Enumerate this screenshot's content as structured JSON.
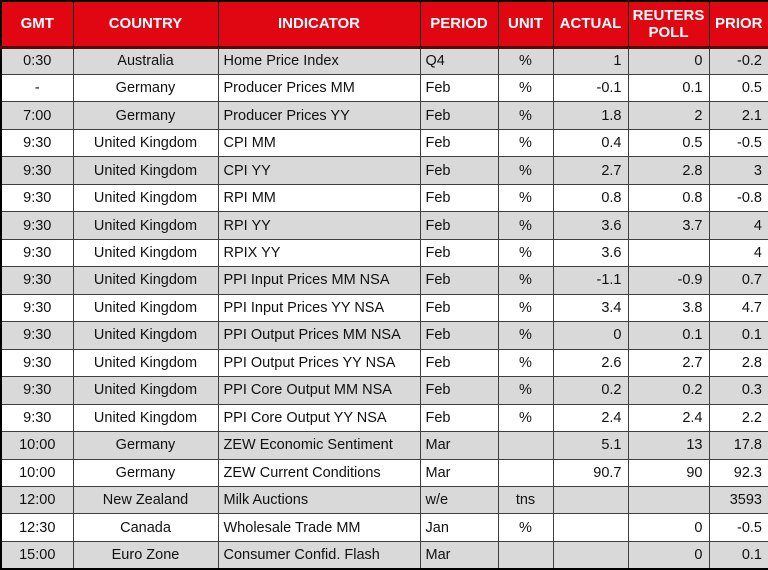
{
  "chart_data": {
    "type": "table",
    "columns": [
      "GMT",
      "COUNTRY",
      "INDICATOR",
      "PERIOD",
      "UNIT",
      "ACTUAL",
      "REUTERS POLL",
      "PRIOR"
    ],
    "rows": [
      [
        "0:30",
        "Australia",
        "Home Price Index",
        "Q4",
        "%",
        "1",
        "0",
        "-0.2"
      ],
      [
        "-",
        "Germany",
        "Producer Prices MM",
        "Feb",
        "%",
        "-0.1",
        "0.1",
        "0.5"
      ],
      [
        "7:00",
        "Germany",
        "Producer Prices YY",
        "Feb",
        "%",
        "1.8",
        "2",
        "2.1"
      ],
      [
        "9:30",
        "United Kingdom",
        "CPI MM",
        "Feb",
        "%",
        "0.4",
        "0.5",
        "-0.5"
      ],
      [
        "9:30",
        "United Kingdom",
        "CPI YY",
        "Feb",
        "%",
        "2.7",
        "2.8",
        "3"
      ],
      [
        "9:30",
        "United Kingdom",
        "RPI MM",
        "Feb",
        "%",
        "0.8",
        "0.8",
        "-0.8"
      ],
      [
        "9:30",
        "United Kingdom",
        "RPI YY",
        "Feb",
        "%",
        "3.6",
        "3.7",
        "4"
      ],
      [
        "9:30",
        "United Kingdom",
        "RPIX YY",
        "Feb",
        "%",
        "3.6",
        "",
        "4"
      ],
      [
        "9:30",
        "United Kingdom",
        "PPI Input Prices MM NSA",
        "Feb",
        "%",
        "-1.1",
        "-0.9",
        "0.7"
      ],
      [
        "9:30",
        "United Kingdom",
        "PPI Input Prices YY NSA",
        "Feb",
        "%",
        "3.4",
        "3.8",
        "4.7"
      ],
      [
        "9:30",
        "United Kingdom",
        "PPI Output Prices MM NSA",
        "Feb",
        "%",
        "0",
        "0.1",
        "0.1"
      ],
      [
        "9:30",
        "United Kingdom",
        "PPI Output Prices YY NSA",
        "Feb",
        "%",
        "2.6",
        "2.7",
        "2.8"
      ],
      [
        "9:30",
        "United Kingdom",
        "PPI Core Output MM NSA",
        "Feb",
        "%",
        "0.2",
        "0.2",
        "0.3"
      ],
      [
        "9:30",
        "United Kingdom",
        "PPI Core Output YY NSA",
        "Feb",
        "%",
        "2.4",
        "2.4",
        "2.2"
      ],
      [
        "10:00",
        "Germany",
        "ZEW Economic Sentiment",
        "Mar",
        "",
        "5.1",
        "13",
        "17.8"
      ],
      [
        "10:00",
        "Germany",
        "ZEW Current Conditions",
        "Mar",
        "",
        "90.7",
        "90",
        "92.3"
      ],
      [
        "12:00",
        "New Zealand",
        "Milk Auctions",
        "w/e",
        "tns",
        "",
        "",
        "3593"
      ],
      [
        "12:30",
        "Canada",
        "Wholesale Trade MM",
        "Jan",
        "%",
        "",
        "0",
        "-0.5"
      ],
      [
        "15:00",
        "Euro Zone",
        "Consumer Confid. Flash",
        "Mar",
        "",
        "",
        "0",
        "0.1"
      ]
    ]
  },
  "colors": {
    "header_bg": "#e00713",
    "header_text": "#ffffff",
    "header_divider": "#550a0a",
    "row_shaded": "#d9d9d9",
    "row_plain": "#ffffff",
    "grid": "#3f3f3f",
    "outer_border": "#000000",
    "body_text": "#111111"
  }
}
